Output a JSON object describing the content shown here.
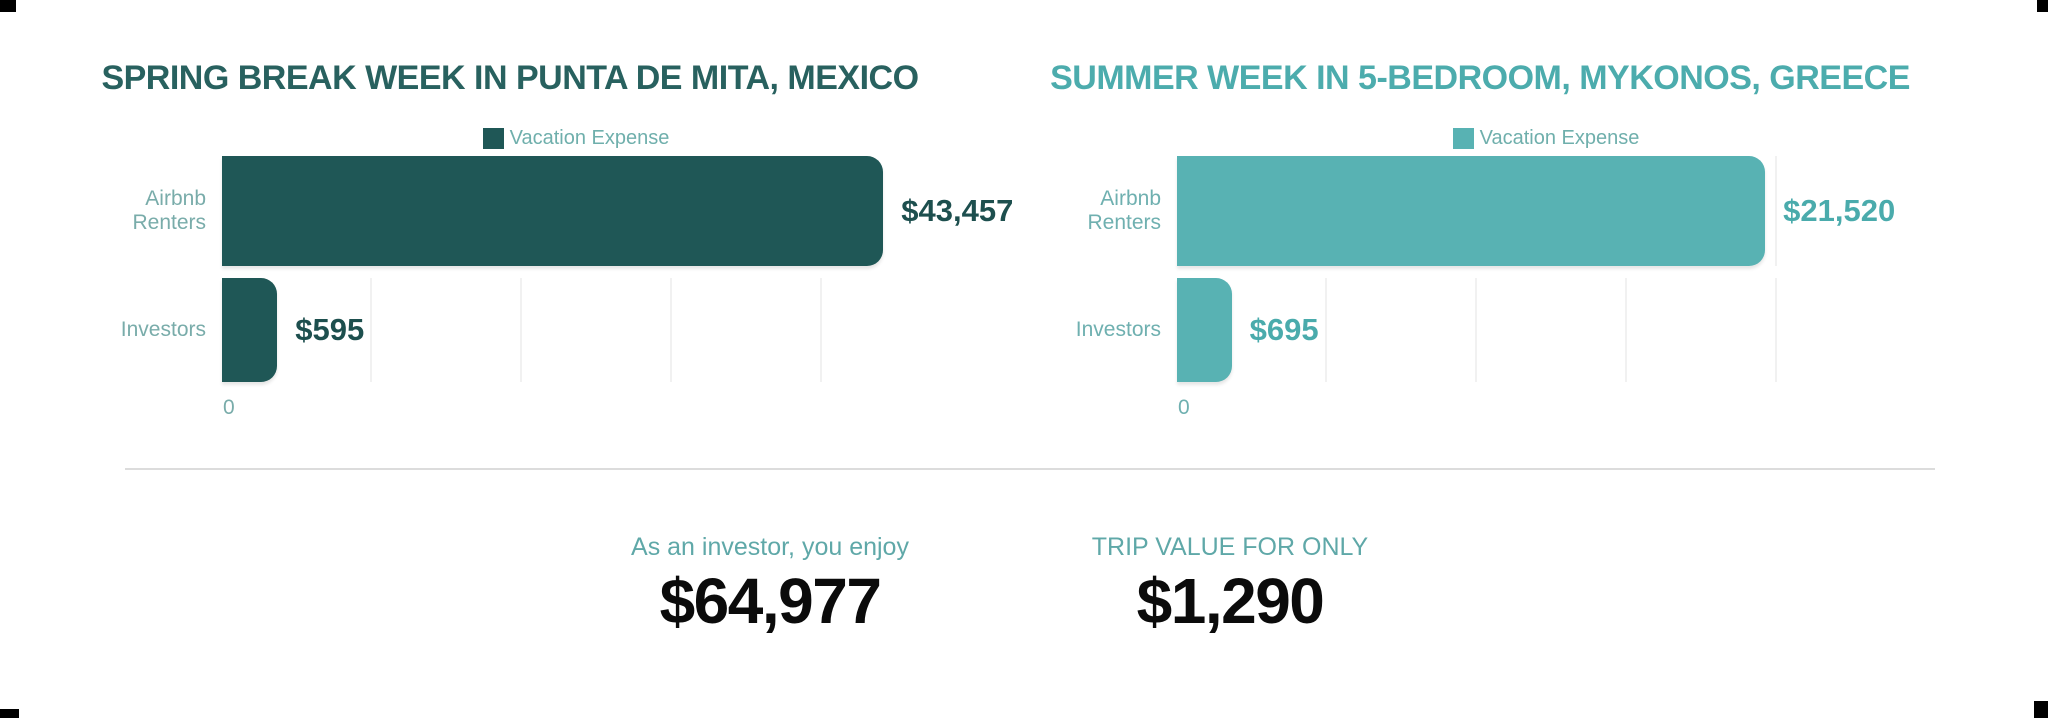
{
  "page": {
    "background": "#ffffff",
    "divider_color": "#dcdcdc",
    "gridline_color": "#f1f1f1",
    "corner_mark_color": "#000000"
  },
  "charts": [
    {
      "title": "SPRING BREAK WEEK IN PUNTA DE MITA, MEXICO",
      "legend": {
        "label": "Vacation Expense"
      },
      "axis": {
        "zero_label": "0"
      },
      "bars": [
        {
          "label": "Airbnb Renters",
          "value": 43457,
          "value_label": "$43,457",
          "width_pct": 93.4
        },
        {
          "label": "Investors",
          "value": 595,
          "value_label": "$595",
          "width_pct": 7.8
        }
      ],
      "colors": {
        "bar": "#1F5756",
        "title": "#28615F",
        "value": "#1D4F4E",
        "category_label": "#79ACAA",
        "legend_text": "#6FAFAC"
      }
    },
    {
      "title": "SUMMER WEEK IN 5-BEDROOM, MYKONOS, GREECE",
      "legend": {
        "label": "Vacation Expense"
      },
      "axis": {
        "zero_label": "0"
      },
      "bars": [
        {
          "label": "Airbnb Renters",
          "value": 21520,
          "value_label": "$21,520",
          "width_pct": 79.7
        },
        {
          "label": "Investors",
          "value": 695,
          "value_label": "$695",
          "width_pct": 7.4
        }
      ],
      "colors": {
        "bar": "#58B2B3",
        "title": "#4CACAD",
        "value": "#4AABAC",
        "category_label": "#6FB0B0",
        "legend_text": "#6FAFAC"
      }
    }
  ],
  "summary": {
    "items": [
      {
        "label": "As an investor, you enjoy",
        "value": "$64,977"
      },
      {
        "label": "TRIP VALUE FOR ONLY",
        "value": "$1,290"
      }
    ],
    "label_color": "#5FA8A8",
    "value_color": "#0B0B0B"
  },
  "chart_data": [
    {
      "type": "bar",
      "orientation": "horizontal",
      "title": "SPRING BREAK WEEK IN PUNTA DE MITA, MEXICO",
      "series_name": "Vacation Expense",
      "categories": [
        "Airbnb Renters",
        "Investors"
      ],
      "values": [
        43457,
        595
      ],
      "value_labels": [
        "$43,457",
        "$595"
      ],
      "xlabel": "",
      "ylabel": "",
      "xlim": [
        0,
        46500
      ],
      "x_tick_labels_shown": [
        "0"
      ],
      "grid": true,
      "legend_position": "top",
      "bar_color": "#1F5756"
    },
    {
      "type": "bar",
      "orientation": "horizontal",
      "title": "SUMMER WEEK IN 5-BEDROOM, MYKONOS, GREECE",
      "series_name": "Vacation Expense",
      "categories": [
        "Airbnb Renters",
        "Investors"
      ],
      "values": [
        21520,
        695
      ],
      "value_labels": [
        "$21,520",
        "$695"
      ],
      "xlabel": "",
      "ylabel": "",
      "xlim": [
        0,
        27000
      ],
      "x_tick_labels_shown": [
        "0"
      ],
      "grid": true,
      "legend_position": "top",
      "bar_color": "#58B2B3"
    }
  ]
}
